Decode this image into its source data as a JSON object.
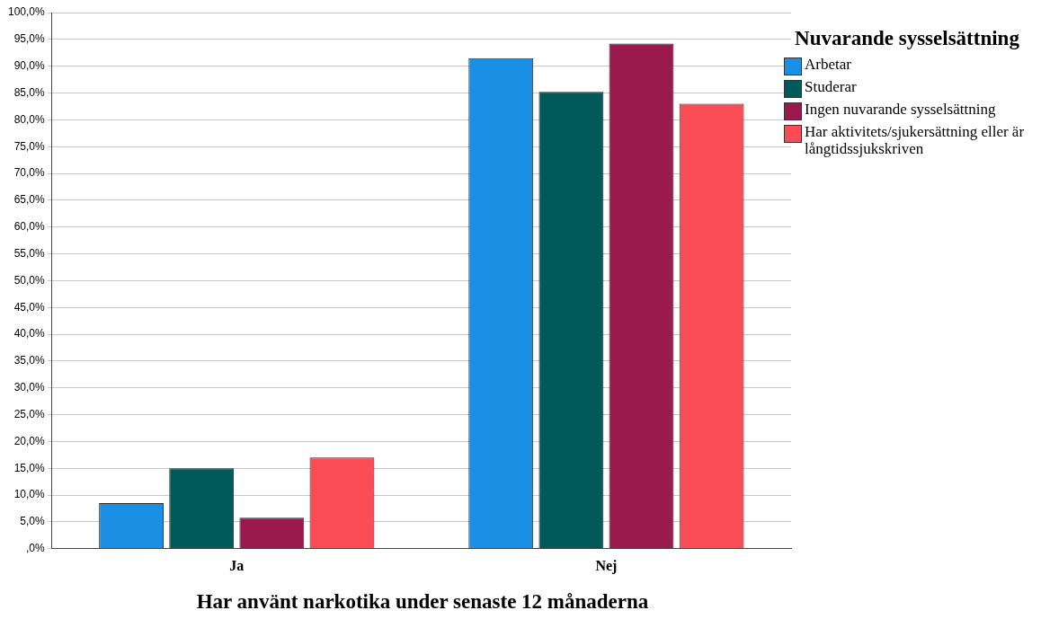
{
  "chart_data": {
    "type": "bar",
    "xlabel": "Har använt narkotika under senaste 12 månaderna",
    "legend_title": "Nuvarande sysselsättning",
    "categories": [
      "Ja",
      "Nej"
    ],
    "series": [
      {
        "name": "Arbetar",
        "color": "#1a8fe3",
        "values": [
          8.5,
          91.5
        ]
      },
      {
        "name": "Studerar",
        "color": "#005a5a",
        "values": [
          15.0,
          85.2
        ]
      },
      {
        "name": "Ingen nuvarande sysselsättning",
        "color": "#9b1a4e",
        "values": [
          5.8,
          94.2
        ]
      },
      {
        "name": "Har aktivitets/sjukersättning eller är långtidssjukskriven",
        "color": "#f94c55",
        "values": [
          17.0,
          83.0
        ]
      }
    ],
    "ylim": [
      0,
      100
    ],
    "yticks": [
      {
        "value": 0,
        "label": ",0%"
      },
      {
        "value": 5,
        "label": "5,0%"
      },
      {
        "value": 10,
        "label": "10,0%"
      },
      {
        "value": 15,
        "label": "15,0%"
      },
      {
        "value": 20,
        "label": "20,0%"
      },
      {
        "value": 25,
        "label": "25,0%"
      },
      {
        "value": 30,
        "label": "30,0%"
      },
      {
        "value": 35,
        "label": "35,0%"
      },
      {
        "value": 40,
        "label": "40,0%"
      },
      {
        "value": 45,
        "label": "45,0%"
      },
      {
        "value": 50,
        "label": "50,0%"
      },
      {
        "value": 55,
        "label": "55,0%"
      },
      {
        "value": 60,
        "label": "60,0%"
      },
      {
        "value": 65,
        "label": "65,0%"
      },
      {
        "value": 70,
        "label": "70,0%"
      },
      {
        "value": 75,
        "label": "75,0%"
      },
      {
        "value": 80,
        "label": "80,0%"
      },
      {
        "value": 85,
        "label": "85,0%"
      },
      {
        "value": 90,
        "label": "90,0%"
      },
      {
        "value": 95,
        "label": "95,0%"
      },
      {
        "value": 100,
        "label": "100,0%"
      }
    ],
    "grid": "y",
    "legend": "right"
  }
}
